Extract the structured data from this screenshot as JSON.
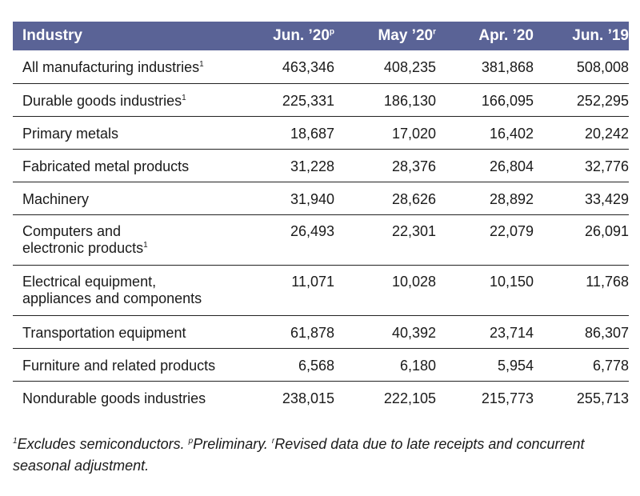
{
  "table": {
    "headers": [
      {
        "label": "Industry",
        "sup": ""
      },
      {
        "label": "Jun. ’20",
        "sup": "p"
      },
      {
        "label": "May ’20",
        "sup": "r"
      },
      {
        "label": "Apr. ’20",
        "sup": ""
      },
      {
        "label": "Jun. ’19",
        "sup": ""
      }
    ],
    "rows": [
      {
        "name_line1": "All manufacturing industries",
        "name_line2": "",
        "sup": "1",
        "values": [
          "463,346",
          "408,235",
          "381,868",
          "508,008"
        ]
      },
      {
        "name_line1": "Durable goods industries",
        "name_line2": "",
        "sup": "1",
        "values": [
          "225,331",
          "186,130",
          "166,095",
          "252,295"
        ]
      },
      {
        "name_line1": "Primary metals",
        "name_line2": "",
        "sup": "",
        "values": [
          "18,687",
          "17,020",
          "16,402",
          "20,242"
        ]
      },
      {
        "name_line1": "Fabricated metal products",
        "name_line2": "",
        "sup": "",
        "values": [
          "31,228",
          "28,376",
          "26,804",
          "32,776"
        ]
      },
      {
        "name_line1": "Machinery",
        "name_line2": "",
        "sup": "",
        "values": [
          "31,940",
          "28,626",
          "28,892",
          "33,429"
        ]
      },
      {
        "name_line1": "Computers and",
        "name_line2": "electronic products",
        "sup": "1",
        "values": [
          "26,493",
          "22,301",
          "22,079",
          "26,091"
        ]
      },
      {
        "name_line1": "Electrical equipment,",
        "name_line2": "appliances and components",
        "sup": "",
        "values": [
          "11,071",
          "10,028",
          "10,150",
          "11,768"
        ]
      },
      {
        "name_line1": "Transportation equipment",
        "name_line2": "",
        "sup": "",
        "values": [
          "61,878",
          "40,392",
          "23,714",
          "86,307"
        ]
      },
      {
        "name_line1": "Furniture and related products",
        "name_line2": "",
        "sup": "",
        "values": [
          "6,568",
          "6,180",
          "5,954",
          "6,778"
        ]
      },
      {
        "name_line1": "Nondurable goods industries",
        "name_line2": "",
        "sup": "",
        "values": [
          "238,015",
          "222,105",
          "215,773",
          "255,713"
        ]
      }
    ]
  },
  "footnote": {
    "sup1": "1",
    "text1": "Excludes semiconductors. ",
    "sup2": "p",
    "text2": "Preliminary. ",
    "sup3": "r",
    "text3": "Revised data due to late receipts and concurrent seasonal adjustment."
  },
  "colors": {
    "header_bg": "#5a6396",
    "header_text": "#ffffff",
    "rule": "#222222"
  }
}
